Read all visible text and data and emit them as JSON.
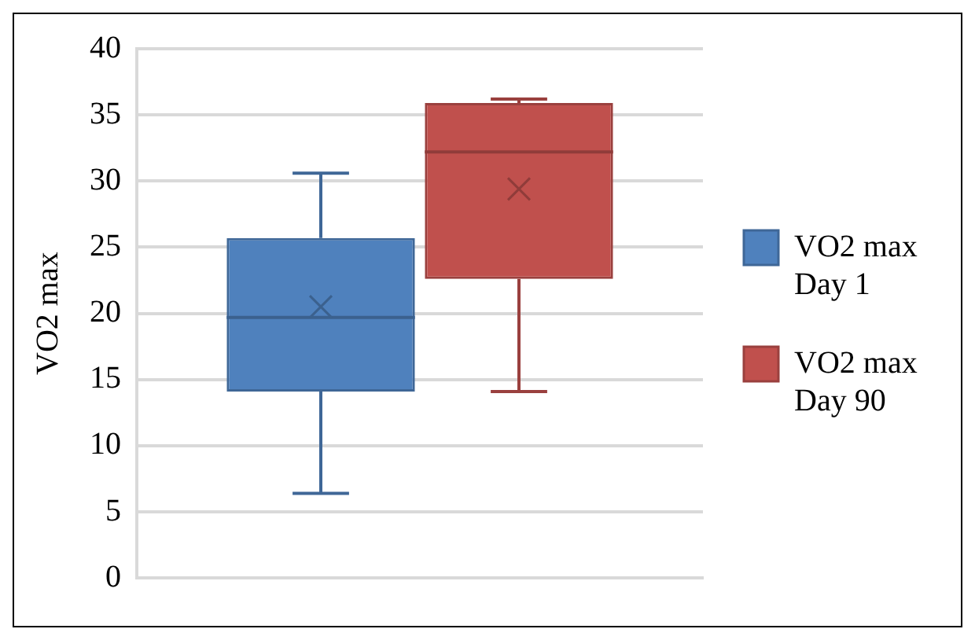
{
  "chart_data": {
    "type": "box",
    "ylabel": "VO2 max",
    "categories": [
      null
    ],
    "series": [
      {
        "name": "VO2 max Day 1",
        "color": "#4f81bd",
        "boxes": [
          {
            "low": 6.4,
            "q1": 14.1,
            "median": 19.7,
            "q3": 25.7,
            "high": 30.6,
            "mean": 20.5
          }
        ]
      },
      {
        "name": "VO2 max Day 90",
        "color": "#c0504d",
        "boxes": [
          {
            "low": 14.1,
            "q1": 22.6,
            "median": 32.2,
            "q3": 35.9,
            "high": 36.2,
            "mean": 29.4
          }
        ]
      }
    ],
    "ylim": [
      0,
      40
    ],
    "yticks": [
      0,
      5,
      10,
      15,
      20,
      25,
      30,
      35,
      40
    ],
    "grid": "y",
    "legend": "right"
  }
}
